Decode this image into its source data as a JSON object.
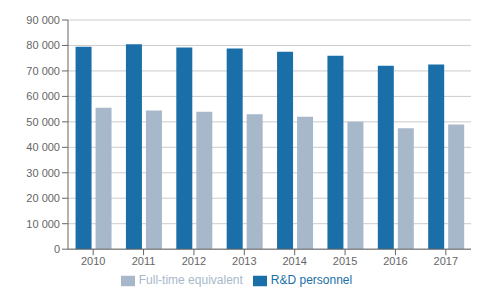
{
  "chart_data": {
    "type": "bar",
    "categories": [
      "2010",
      "2011",
      "2012",
      "2013",
      "2014",
      "2015",
      "2016",
      "2017"
    ],
    "series": [
      {
        "name": "R&D personnel",
        "color": "#1a6fa8",
        "values": [
          79500,
          80500,
          79200,
          78800,
          77500,
          76000,
          72000,
          72500
        ]
      },
      {
        "name": "Full-time equivalent",
        "color": "#a8b8cb",
        "values": [
          55500,
          54500,
          54000,
          53000,
          52000,
          50000,
          47500,
          49000
        ]
      }
    ],
    "ylim": [
      0,
      90000
    ],
    "yticks": [
      0,
      {
        "value": 10000,
        "label": "10 000"
      },
      {
        "value": 20000,
        "label": "20 000"
      },
      {
        "value": 30000,
        "label": "30 000"
      },
      {
        "value": 40000,
        "label": "40 000"
      },
      {
        "value": 50000,
        "label": "50 000"
      },
      {
        "value": 60000,
        "label": "60 000"
      },
      {
        "value": 70000,
        "label": "70 000"
      },
      {
        "value": 80000,
        "label": "80 000"
      },
      {
        "value": 90000,
        "label": "90 000"
      }
    ],
    "grid": true,
    "legend": "bottom"
  }
}
